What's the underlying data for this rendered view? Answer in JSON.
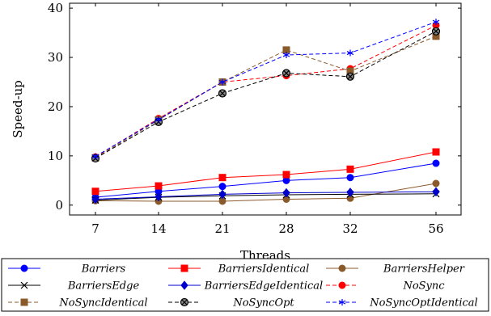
{
  "chart_data": {
    "type": "line",
    "xlabel": "Threads",
    "ylabel": "Speed-up",
    "categories": [
      "7",
      "14",
      "21",
      "28",
      "32",
      "56"
    ],
    "ylim": [
      -2,
      41
    ],
    "yticks": [
      0,
      10,
      20,
      30,
      40
    ],
    "grid": false,
    "legend_position": "bottom",
    "series": [
      {
        "name": "Barriers",
        "color": "#0000ff",
        "marker": "circle",
        "dash": "solid",
        "values": [
          1.6,
          2.8,
          3.8,
          5.0,
          5.6,
          8.5
        ]
      },
      {
        "name": "BarriersIdentical",
        "color": "#ff0000",
        "marker": "square",
        "dash": "solid",
        "values": [
          2.8,
          3.9,
          5.6,
          6.2,
          7.3,
          10.8
        ]
      },
      {
        "name": "BarriersHelper",
        "color": "#8b5a2b",
        "marker": "circle",
        "dash": "solid",
        "values": [
          0.9,
          0.8,
          0.8,
          1.2,
          1.4,
          4.4
        ]
      },
      {
        "name": "BarriersEdge",
        "color": "#000000",
        "marker": "x",
        "dash": "solid",
        "values": [
          1.0,
          1.6,
          1.9,
          2.1,
          2.2,
          2.3
        ]
      },
      {
        "name": "BarriersEdgeIdentical",
        "color": "#0000cc",
        "marker": "diamond",
        "dash": "solid",
        "values": [
          1.2,
          1.7,
          2.2,
          2.5,
          2.6,
          2.7
        ]
      },
      {
        "name": "NoSync",
        "color": "#ff0000",
        "marker": "circle",
        "dash": "dashed",
        "values": [
          9.8,
          17.6,
          25.0,
          26.3,
          27.7,
          36.5
        ]
      },
      {
        "name": "NoSyncIdentical",
        "color": "#8b5a2b",
        "marker": "square",
        "dash": "dashed",
        "values": [
          9.6,
          17.3,
          25.0,
          31.5,
          27.2,
          34.3
        ]
      },
      {
        "name": "NoSyncOpt",
        "color": "#000000",
        "marker": "otimes",
        "dash": "dashed",
        "values": [
          9.5,
          16.9,
          22.7,
          26.8,
          26.1,
          35.3
        ]
      },
      {
        "name": "NoSyncOptIdentical",
        "color": "#0000ff",
        "marker": "asterisk",
        "dash": "dashed",
        "values": [
          9.9,
          17.4,
          25.0,
          30.5,
          30.9,
          37.2
        ]
      }
    ]
  }
}
